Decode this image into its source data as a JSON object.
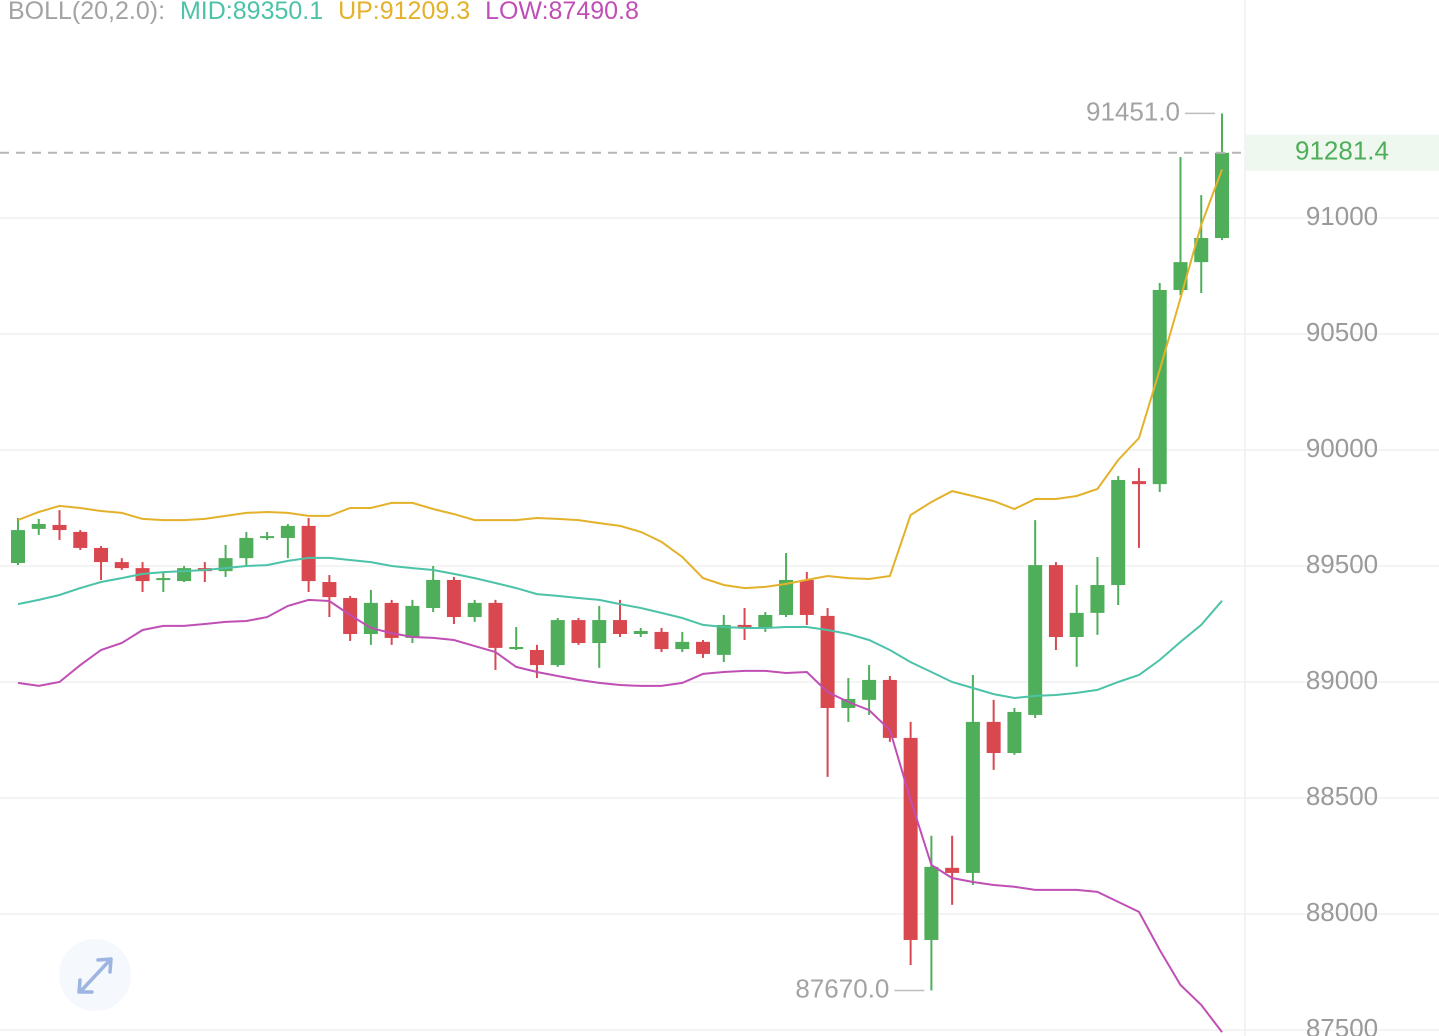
{
  "chart_data": {
    "type": "candlestick",
    "indicator": "BOLL(20,2.0):",
    "ylim": [
      87474,
      91940
    ],
    "yticks": [
      87500,
      88000,
      88500,
      89000,
      89500,
      90000,
      90500,
      91000
    ],
    "grid": true,
    "up_color": "#4fae5a",
    "down_color": "#d9474f",
    "open": [
      89513,
      89660,
      89677,
      89647,
      89578,
      89517,
      89491,
      89440,
      89435,
      89491,
      89478,
      89534,
      89621,
      89621,
      89673,
      89431,
      89362,
      89207,
      89341,
      89190,
      89319,
      89440,
      89280,
      89341,
      89142,
      89138,
      89073,
      89267,
      89168,
      89267,
      89207,
      89216,
      89142,
      89173,
      89117,
      89246,
      89233,
      89289,
      89440,
      89285,
      88888,
      88923,
      89009,
      88759,
      87888,
      88199,
      88177,
      88828,
      88694,
      88858,
      89504,
      89194,
      89298,
      89418,
      89866,
      89853,
      90690,
      90810,
      90914
    ],
    "close": [
      89655,
      89681,
      89655,
      89578,
      89517,
      89491,
      89435,
      89448,
      89491,
      89478,
      89534,
      89621,
      89629,
      89673,
      89435,
      89366,
      89207,
      89341,
      89190,
      89328,
      89440,
      89280,
      89341,
      89147,
      89151,
      89073,
      89267,
      89168,
      89267,
      89207,
      89220,
      89142,
      89173,
      89121,
      89246,
      89237,
      89289,
      89440,
      89289,
      88888,
      88927,
      89009,
      88759,
      87888,
      88203,
      88177,
      88828,
      88694,
      88871,
      89504,
      89194,
      89298,
      89418,
      89871,
      89853,
      90690,
      90810,
      90914,
      91281.4
    ],
    "high": [
      89707,
      89703,
      89741,
      89655,
      89586,
      89534,
      89517,
      89474,
      89500,
      89517,
      89591,
      89647,
      89647,
      89681,
      89707,
      89461,
      89371,
      89397,
      89354,
      89354,
      89500,
      89453,
      89354,
      89354,
      89237,
      89160,
      89276,
      89276,
      89328,
      89354,
      89233,
      89233,
      89216,
      89181,
      89289,
      89319,
      89302,
      89556,
      89474,
      89319,
      89017,
      89073,
      89026,
      88828,
      88337,
      88337,
      89030,
      88923,
      88888,
      89698,
      89517,
      89418,
      89539,
      89888,
      89922,
      90720,
      91263,
      91099,
      91451
    ],
    "low": [
      89504,
      89634,
      89612,
      89569,
      89440,
      89483,
      89388,
      89388,
      89431,
      89431,
      89453,
      89504,
      89612,
      89534,
      89388,
      89280,
      89177,
      89160,
      89160,
      89168,
      89302,
      89250,
      89259,
      89052,
      89138,
      89017,
      89065,
      89160,
      89061,
      89194,
      89194,
      89129,
      89129,
      89104,
      89086,
      89181,
      89216,
      89280,
      89246,
      88591,
      88828,
      88858,
      88742,
      87780,
      87670,
      88039,
      88125,
      88621,
      88686,
      88845,
      89138,
      89065,
      89203,
      89332,
      89578,
      89819,
      90668,
      90677,
      90905
    ],
    "series": [
      {
        "name": "MID:89350.1",
        "color": "#4cc3a8",
        "values": [
          89336,
          89354,
          89375,
          89405,
          89431,
          89448,
          89466,
          89474,
          89478,
          89483,
          89491,
          89500,
          89504,
          89522,
          89535,
          89535,
          89526,
          89517,
          89500,
          89491,
          89483,
          89466,
          89448,
          89427,
          89405,
          89379,
          89371,
          89362,
          89354,
          89336,
          89319,
          89298,
          89276,
          89246,
          89237,
          89233,
          89233,
          89237,
          89237,
          89224,
          89207,
          89181,
          89138,
          89086,
          89043,
          89000,
          88974,
          88948,
          88931,
          88940,
          88944,
          88953,
          88966,
          89000,
          89030,
          89095,
          89173,
          89246,
          89350.1
        ]
      },
      {
        "name": "UP:91209.3",
        "color": "#e4b12a",
        "values": [
          89698,
          89733,
          89759,
          89750,
          89737,
          89729,
          89703,
          89698,
          89698,
          89703,
          89716,
          89729,
          89733,
          89729,
          89716,
          89716,
          89750,
          89750,
          89772,
          89772,
          89746,
          89724,
          89698,
          89698,
          89698,
          89707,
          89703,
          89698,
          89685,
          89673,
          89647,
          89604,
          89539,
          89448,
          89418,
          89405,
          89410,
          89423,
          89440,
          89457,
          89448,
          89444,
          89457,
          89720,
          89776,
          89823,
          89802,
          89780,
          89746,
          89789,
          89789,
          89802,
          89832,
          89957,
          90052,
          90345,
          90655,
          90970,
          91209.3
        ]
      },
      {
        "name": "LOW:87490.8",
        "color": "#c04fb5",
        "values": [
          88996,
          88983,
          89000,
          89073,
          89138,
          89168,
          89224,
          89242,
          89242,
          89250,
          89259,
          89263,
          89280,
          89328,
          89354,
          89349,
          89289,
          89233,
          89211,
          89194,
          89190,
          89181,
          89155,
          89129,
          89065,
          89043,
          89026,
          89009,
          88996,
          88987,
          88983,
          88983,
          88996,
          89035,
          89043,
          89048,
          89048,
          89039,
          89043,
          88957,
          88914,
          88879,
          88793,
          88492,
          88211,
          88155,
          88138,
          88125,
          88117,
          88104,
          88104,
          88104,
          88095,
          88052,
          88009,
          87845,
          87694,
          87608,
          87490.8
        ]
      }
    ],
    "annotations": {
      "high": {
        "value": 91451,
        "label": "91451.0"
      },
      "low": {
        "value": 87670,
        "label": "87670.0"
      },
      "last": {
        "value": 91281.4,
        "label": "91281.4"
      }
    }
  }
}
